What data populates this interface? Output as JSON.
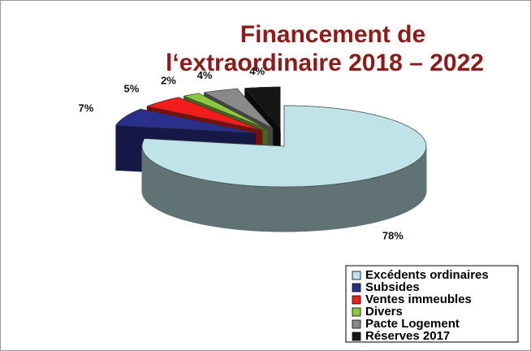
{
  "chart_data": {
    "type": "pie",
    "title": [
      "Financement de",
      "l‘extraordinaire 2018 – 2022"
    ],
    "categories": [
      "Excédents ordinaires",
      "Subsides",
      "Ventes immeubles",
      "Divers",
      "Pacte Logement",
      "Réserves 2017"
    ],
    "values": [
      78,
      7,
      5,
      2,
      4,
      4
    ],
    "value_labels": [
      "78%",
      "7%",
      "5%",
      "2%",
      "4%",
      "4%"
    ],
    "colors": [
      "#bfe3e8",
      "#2b2f8c",
      "#f21c1c",
      "#8cc63f",
      "#8a8a8a",
      "#151515"
    ],
    "legend": "bottom-right"
  }
}
